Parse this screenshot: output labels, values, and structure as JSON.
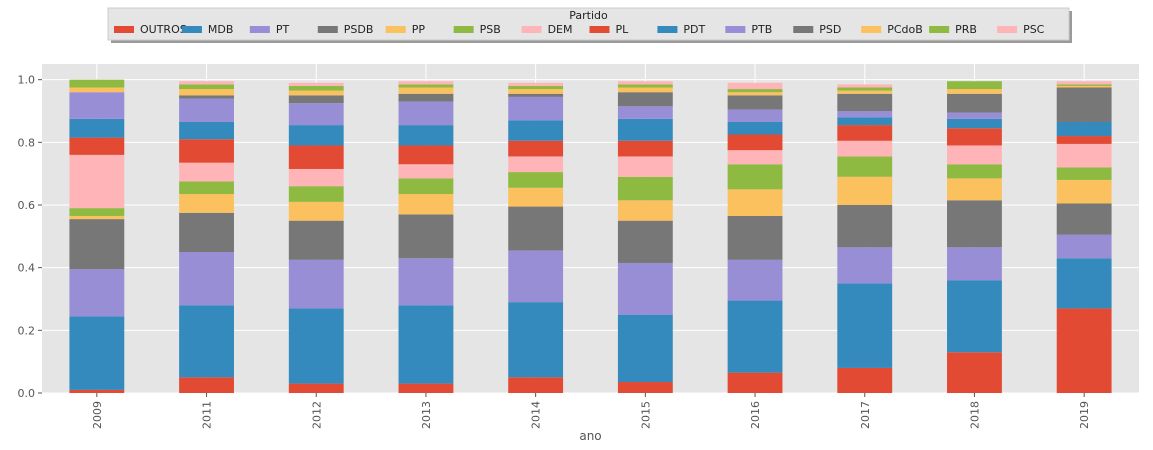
{
  "chart_data": {
    "type": "bar",
    "stacked": true,
    "title": "",
    "xlabel": "ano",
    "ylabel": "",
    "ylim": [
      0,
      1.05
    ],
    "yticks": [
      0.0,
      0.2,
      0.4,
      0.6,
      0.8,
      1.0
    ],
    "ytick_labels": [
      "0.0",
      "0.2",
      "0.4",
      "0.6",
      "0.8",
      "1.0"
    ],
    "grid": true,
    "legend": {
      "title": "Partido",
      "position": "top"
    },
    "categories": [
      "2009",
      "2011",
      "2012",
      "2013",
      "2014",
      "2015",
      "2016",
      "2017",
      "2018",
      "2019"
    ],
    "series": [
      {
        "name": "OUTROS",
        "color": "#E24A33",
        "values": [
          0.01,
          0.05,
          0.03,
          0.03,
          0.05,
          0.035,
          0.065,
          0.08,
          0.13,
          0.27
        ]
      },
      {
        "name": "MDB",
        "color": "#348ABD",
        "values": [
          0.235,
          0.23,
          0.24,
          0.25,
          0.24,
          0.215,
          0.23,
          0.27,
          0.23,
          0.16
        ]
      },
      {
        "name": "PT",
        "color": "#988ED5",
        "values": [
          0.15,
          0.17,
          0.155,
          0.15,
          0.165,
          0.165,
          0.13,
          0.115,
          0.105,
          0.075
        ]
      },
      {
        "name": "PSDB",
        "color": "#777777",
        "values": [
          0.16,
          0.125,
          0.125,
          0.14,
          0.14,
          0.135,
          0.14,
          0.135,
          0.15,
          0.1
        ]
      },
      {
        "name": "PP",
        "color": "#FBC15E",
        "values": [
          0.01,
          0.06,
          0.06,
          0.065,
          0.06,
          0.065,
          0.085,
          0.09,
          0.07,
          0.075
        ]
      },
      {
        "name": "PSB",
        "color": "#8EBA42",
        "values": [
          0.025,
          0.04,
          0.05,
          0.05,
          0.05,
          0.075,
          0.08,
          0.065,
          0.045,
          0.04
        ]
      },
      {
        "name": "DEM",
        "color": "#FFB5B8",
        "values": [
          0.17,
          0.06,
          0.055,
          0.045,
          0.05,
          0.065,
          0.045,
          0.05,
          0.06,
          0.075
        ]
      },
      {
        "name": "PL",
        "color": "#E24A33",
        "values": [
          0.055,
          0.075,
          0.075,
          0.06,
          0.05,
          0.05,
          0.05,
          0.05,
          0.055,
          0.025
        ]
      },
      {
        "name": "PDT",
        "color": "#348ABD",
        "values": [
          0.06,
          0.055,
          0.065,
          0.065,
          0.065,
          0.07,
          0.04,
          0.025,
          0.03,
          0.045
        ]
      },
      {
        "name": "PTB",
        "color": "#988ED5",
        "values": [
          0.085,
          0.075,
          0.07,
          0.075,
          0.075,
          0.04,
          0.04,
          0.02,
          0.02,
          0.0
        ]
      },
      {
        "name": "PSD",
        "color": "#777777",
        "values": [
          0.0,
          0.01,
          0.025,
          0.025,
          0.01,
          0.045,
          0.045,
          0.055,
          0.06,
          0.11
        ]
      },
      {
        "name": "PCdoB",
        "color": "#FBC15E",
        "values": [
          0.015,
          0.02,
          0.015,
          0.02,
          0.015,
          0.015,
          0.01,
          0.01,
          0.015,
          0.005
        ]
      },
      {
        "name": "PRB",
        "color": "#8EBA42",
        "values": [
          0.025,
          0.015,
          0.015,
          0.01,
          0.01,
          0.01,
          0.01,
          0.01,
          0.025,
          0.005
        ]
      },
      {
        "name": "PSC",
        "color": "#FFB5B8",
        "values": [
          0.0,
          0.01,
          0.01,
          0.01,
          0.01,
          0.01,
          0.02,
          0.01,
          0.0,
          0.01
        ]
      }
    ]
  }
}
